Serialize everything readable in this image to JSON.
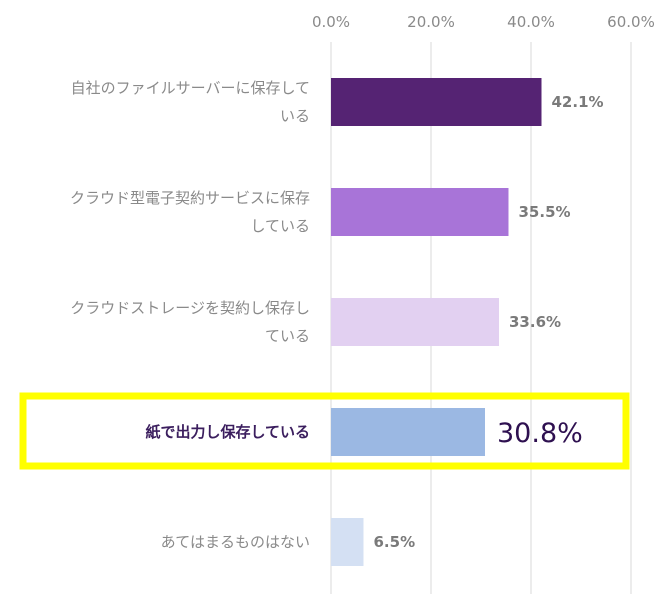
{
  "chart_data": {
    "type": "bar",
    "orientation": "horizontal",
    "categories": [
      "自社のファイルサーバーに保存している",
      "クラウド型電子契約サービスに保存している",
      "クラウドストレージを契約し保存している",
      "紙で出力し保存している",
      "あてはまるものはない"
    ],
    "category_label_lines": [
      [
        "自社のファイルサーバーに保存して",
        "いる"
      ],
      [
        "クラウド型電子契約サービスに保存",
        "している"
      ],
      [
        "クラウドストレージを契約し保存し",
        "ている"
      ],
      [
        "紙で出力し保存している"
      ],
      [
        "あてはまるものはない"
      ]
    ],
    "values": [
      42.1,
      35.5,
      33.6,
      30.8,
      6.5
    ],
    "value_labels": [
      "42.1%",
      "35.5%",
      "33.6%",
      "30.8%",
      "6.5%"
    ],
    "bar_colors": [
      "#552373",
      "#a874d8",
      "#e2d0f1",
      "#9bb8e3",
      "#d4e0f3"
    ],
    "highlight_index": 3,
    "highlight_color": "#ffff00",
    "x_ticks": [
      0,
      20,
      40,
      60
    ],
    "x_tick_labels": [
      "0.0%",
      "20.0%",
      "40.0%",
      "60.0%"
    ],
    "xlim": [
      0,
      60
    ],
    "axis_position": "top",
    "grid": true,
    "title": "",
    "xlabel": "",
    "ylabel": ""
  }
}
